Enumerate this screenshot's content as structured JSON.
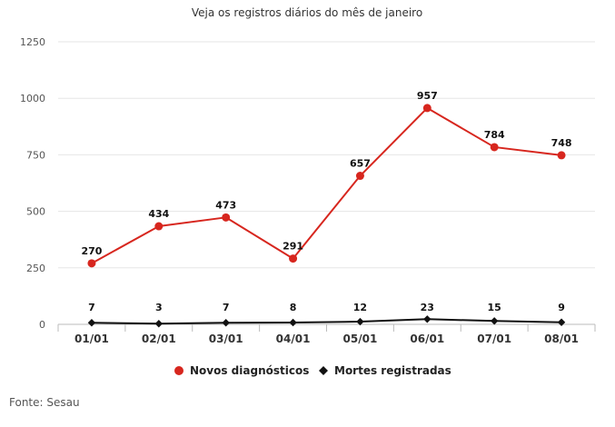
{
  "chart_data": {
    "type": "line",
    "title": "Veja os registros diários do mês de janeiro",
    "categories": [
      "01/01",
      "02/01",
      "03/01",
      "04/01",
      "05/01",
      "06/01",
      "07/01",
      "08/01"
    ],
    "series": [
      {
        "name": "Novos diagnósticos",
        "values": [
          270,
          434,
          473,
          291,
          657,
          957,
          784,
          748
        ],
        "color": "#d7261e",
        "marker": "circle"
      },
      {
        "name": "Mortes registradas",
        "values": [
          7,
          3,
          7,
          8,
          12,
          23,
          15,
          9
        ],
        "color": "#111111",
        "marker": "diamond"
      }
    ],
    "ylim": [
      0,
      1250
    ],
    "yticks": [
      0,
      250,
      500,
      750,
      1000,
      1250
    ],
    "grid": true,
    "legend": "bottom-center"
  },
  "source": "Fonte: Sesau"
}
